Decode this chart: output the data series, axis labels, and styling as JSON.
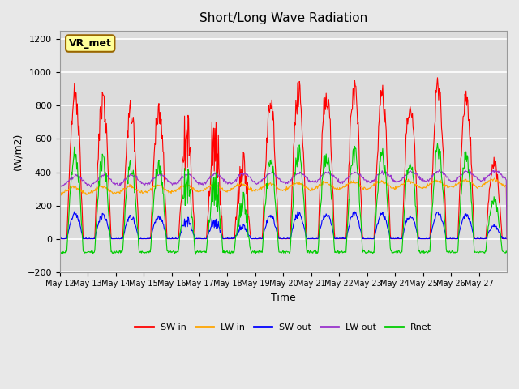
{
  "title": "Short/Long Wave Radiation",
  "xlabel": "Time",
  "ylabel": "(W/m2)",
  "ylim": [
    -200,
    1250
  ],
  "n_days": 16,
  "annotation": "VR_met",
  "x_tick_labels": [
    "May 12",
    "May 13",
    "May 14",
    "May 15",
    "May 16",
    "May 17",
    "May 18",
    "May 19",
    "May 20",
    "May 21",
    "May 22",
    "May 23",
    "May 24",
    "May 25",
    "May 26",
    "May 27"
  ],
  "colors": {
    "SW_in": "#ff0000",
    "LW_in": "#ffa500",
    "SW_out": "#0000ff",
    "LW_out": "#9932cc",
    "Rnet": "#00cc00"
  },
  "legend_labels": [
    "SW in",
    "LW in",
    "SW out",
    "LW out",
    "Rnet"
  ],
  "background_color": "#e8e8e8",
  "plot_bg_color": "#dcdcdc",
  "grid_color": "#ffffff"
}
